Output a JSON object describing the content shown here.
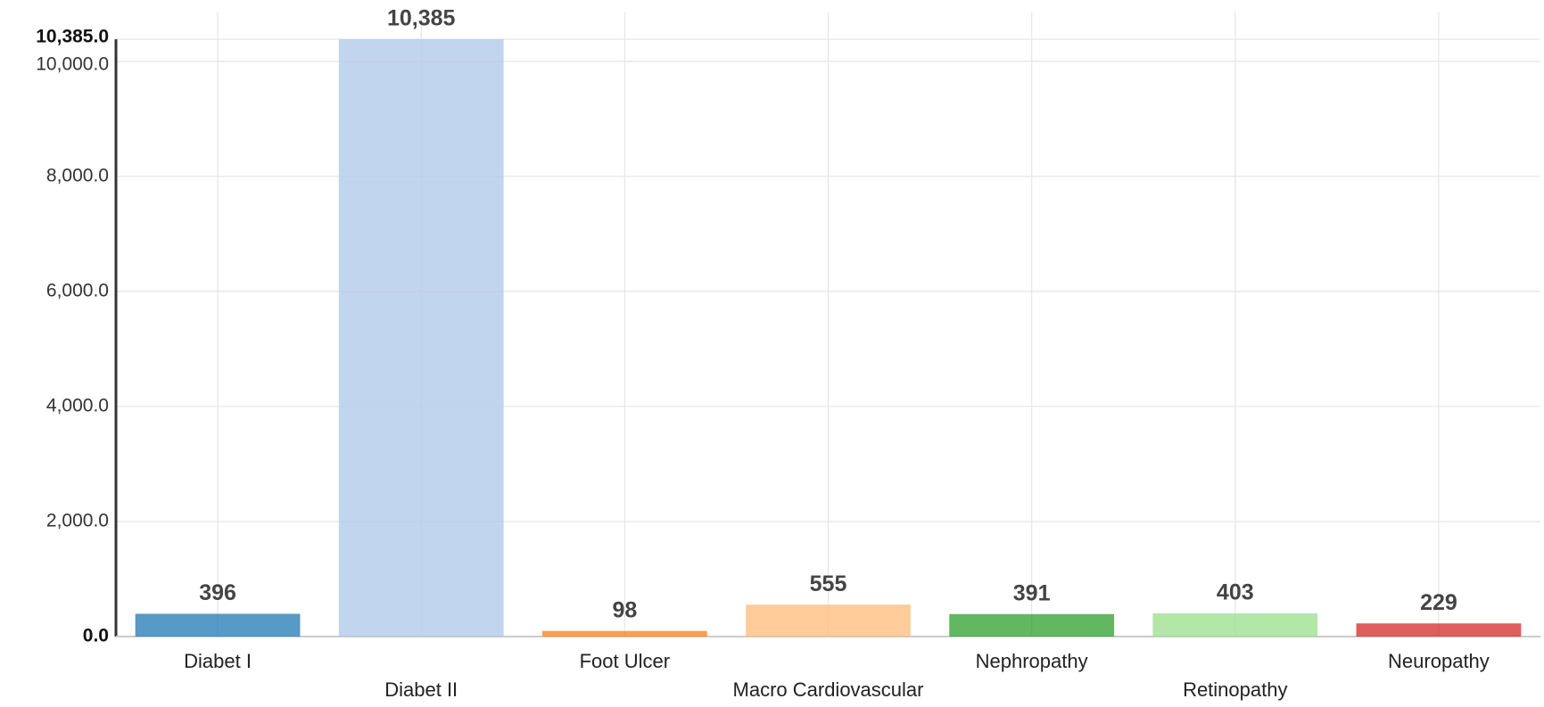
{
  "chart_data": {
    "type": "bar",
    "categories": [
      "Diabet I",
      "Diabet II",
      "Foot Ulcer",
      "Macro Cardiovascular",
      "Nephropathy",
      "Retinopathy",
      "Neuropathy"
    ],
    "values": [
      396,
      10385,
      98,
      555,
      391,
      403,
      229
    ],
    "value_labels": [
      "396",
      "10,385",
      "98",
      "555",
      "391",
      "403",
      "229"
    ],
    "colors": [
      "#1f77b4",
      "#aec7e8",
      "#ff7f0e",
      "#ffbb78",
      "#2ca02c",
      "#98df8a",
      "#d62728"
    ],
    "ylim": [
      0,
      10385
    ],
    "yticks": [
      {
        "value": 0,
        "label": "0.0"
      },
      {
        "value": 2000,
        "label": "2,000.0"
      },
      {
        "value": 4000,
        "label": "4,000.0"
      },
      {
        "value": 6000,
        "label": "6,000.0"
      },
      {
        "value": 8000,
        "label": "8,000.0"
      },
      {
        "value": 10000,
        "label": "10,000.0"
      },
      {
        "value": 10385,
        "label": "10,385.0"
      }
    ],
    "grid": true
  }
}
